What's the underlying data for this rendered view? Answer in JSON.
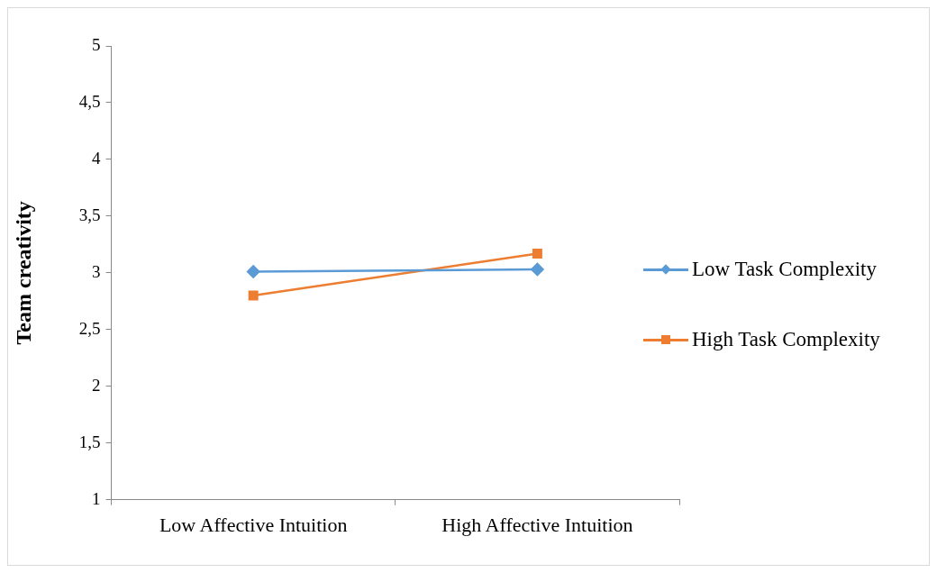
{
  "chart_data": {
    "type": "line",
    "ylabel": "Team creativity",
    "categories": [
      "Low Affective Intuition",
      "High Affective Intuition"
    ],
    "series": [
      {
        "name": "Low Task Complexity",
        "color": "#5b9bd5",
        "marker": "diamond",
        "values": [
          3.01,
          3.03
        ]
      },
      {
        "name": "High Task Complexity",
        "color": "#ed7d31",
        "marker": "square",
        "values": [
          2.8,
          3.17
        ]
      }
    ],
    "ylim": [
      1,
      5
    ],
    "yticks": [
      1,
      {
        "value": 1.5,
        "label": "1,5"
      },
      2,
      {
        "value": 2.5,
        "label": "2,5"
      },
      3,
      {
        "value": 3.5,
        "label": "3,5"
      },
      4,
      {
        "value": 4.5,
        "label": "4,5"
      },
      5
    ],
    "grid": false,
    "legend": "right",
    "line_style": "solid"
  }
}
